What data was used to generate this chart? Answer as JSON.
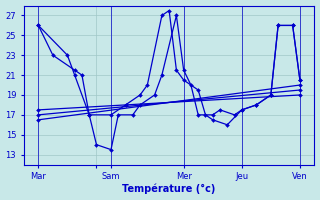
{
  "xlabel": "Température (°c)",
  "ylim": [
    12,
    28
  ],
  "yticks": [
    13,
    15,
    17,
    19,
    21,
    23,
    25,
    27
  ],
  "xlim": [
    0,
    20
  ],
  "background_color": "#c8e8e8",
  "grid_color": "#a0c8c8",
  "line_color": "#0000cc",
  "marker": "D",
  "markersize": 2,
  "linewidth": 0.9,
  "day_positions": [
    1,
    5,
    6,
    11,
    15,
    19
  ],
  "day_labels": [
    "Mar",
    "",
    "Sam",
    "Mer",
    "Jeu",
    "Ven"
  ],
  "vlines": [
    1,
    6,
    11,
    15,
    19
  ],
  "series": [
    {
      "x": [
        1,
        2,
        3.5,
        4,
        4.5,
        6,
        7,
        8,
        8.5,
        9.5,
        10,
        10.5,
        11,
        12,
        12.5,
        13,
        14,
        15,
        16,
        17,
        17.5,
        18.5,
        19
      ],
      "y": [
        26,
        23,
        21.5,
        21,
        17,
        17,
        18,
        19,
        20,
        27,
        27.5,
        21.5,
        20.5,
        19.5,
        17,
        16.5,
        16,
        17.5,
        18,
        19,
        26,
        26,
        20.5
      ]
    },
    {
      "x": [
        1,
        3,
        3.5,
        4.5,
        5,
        6,
        6.5,
        7.5,
        8,
        9,
        9.5,
        10.5,
        11,
        11.5,
        12,
        13,
        13.5,
        14.5,
        15,
        16,
        17,
        17.5,
        18.5,
        19
      ],
      "y": [
        26,
        23,
        21,
        17,
        14,
        13.5,
        17,
        17,
        18,
        19,
        21,
        27,
        21.5,
        20,
        17,
        17,
        17.5,
        17,
        17.5,
        18,
        19,
        26,
        26,
        20.5
      ]
    },
    {
      "x": [
        1,
        19
      ],
      "y": [
        16.5,
        20
      ]
    },
    {
      "x": [
        1,
        19
      ],
      "y": [
        17,
        19.5
      ]
    },
    {
      "x": [
        1,
        19
      ],
      "y": [
        17.5,
        19
      ]
    }
  ]
}
